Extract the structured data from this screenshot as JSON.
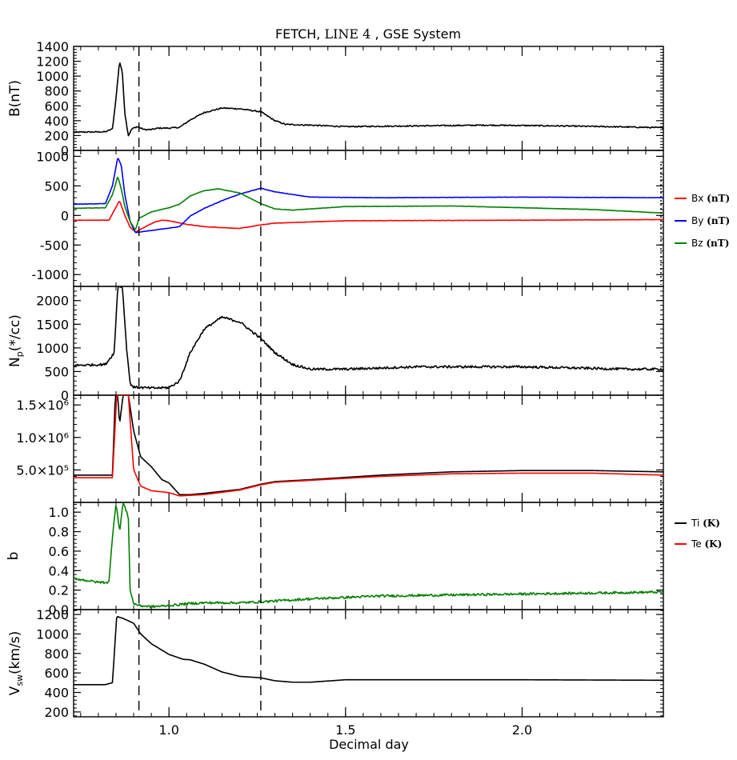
{
  "title": {
    "pre": "FETCH,",
    "mid": "LINE 4",
    "post": ", GSE System"
  },
  "chart_data": {
    "type": "line",
    "xlabel": "Decimal day",
    "xlim": [
      0.73,
      2.4
    ],
    "x_ticks": [
      1.0,
      1.5,
      2.0
    ],
    "x_tick_labels": [
      "1.0",
      "1.5",
      "2.0"
    ],
    "event_lines_x": [
      0.915,
      1.26
    ],
    "panels": [
      {
        "name": "B",
        "ylabel": "B(nT)",
        "ylim": [
          0,
          1400
        ],
        "y_ticks": [
          0,
          200,
          400,
          600,
          800,
          1000,
          1200,
          1400
        ],
        "y_tick_labels": [
          "0",
          "200",
          "400",
          "600",
          "800",
          "1000",
          "1200",
          "1400"
        ],
        "series": [
          {
            "color": "#000000",
            "noise": 8,
            "points": [
              [
                0.73,
                245
              ],
              [
                0.82,
                250
              ],
              [
                0.84,
                290
              ],
              [
                0.85,
                700
              ],
              [
                0.86,
                1200
              ],
              [
                0.868,
                1050
              ],
              [
                0.875,
                500
              ],
              [
                0.885,
                200
              ],
              [
                0.895,
                290
              ],
              [
                0.91,
                320
              ],
              [
                0.93,
                280
              ],
              [
                0.95,
                280
              ],
              [
                0.97,
                300
              ],
              [
                1.0,
                300
              ],
              [
                1.03,
                310
              ],
              [
                1.06,
                410
              ],
              [
                1.1,
                510
              ],
              [
                1.15,
                570
              ],
              [
                1.2,
                560
              ],
              [
                1.26,
                520
              ],
              [
                1.3,
                400
              ],
              [
                1.33,
                350
              ],
              [
                1.4,
                340
              ],
              [
                1.5,
                320
              ],
              [
                1.7,
                330
              ],
              [
                1.9,
                340
              ],
              [
                2.1,
                330
              ],
              [
                2.3,
                315
              ],
              [
                2.4,
                305
              ]
            ]
          }
        ]
      },
      {
        "name": "Bxyz",
        "ylabel": "",
        "ylim": [
          -1200,
          1100
        ],
        "y_ticks": [
          -1000,
          -500,
          0,
          500,
          1000
        ],
        "y_tick_labels": [
          "-1000",
          "-500",
          "0",
          "500",
          "1000"
        ],
        "series": [
          {
            "name": "Bx",
            "color": "#ff0000",
            "noise": 3,
            "points": [
              [
                0.73,
                -80
              ],
              [
                0.83,
                -80
              ],
              [
                0.86,
                250
              ],
              [
                0.875,
                0
              ],
              [
                0.89,
                -200
              ],
              [
                0.905,
                -280
              ],
              [
                0.93,
                -200
              ],
              [
                0.96,
                -110
              ],
              [
                0.98,
                -80
              ],
              [
                1.0,
                -90
              ],
              [
                1.05,
                -150
              ],
              [
                1.1,
                -190
              ],
              [
                1.2,
                -220
              ],
              [
                1.26,
                -160
              ],
              [
                1.3,
                -130
              ],
              [
                1.5,
                -90
              ],
              [
                2.0,
                -80
              ],
              [
                2.4,
                -70
              ]
            ]
          },
          {
            "name": "By",
            "color": "#0000ff",
            "noise": 3,
            "points": [
              [
                0.73,
                190
              ],
              [
                0.82,
                200
              ],
              [
                0.84,
                500
              ],
              [
                0.855,
                980
              ],
              [
                0.865,
                850
              ],
              [
                0.875,
                350
              ],
              [
                0.89,
                -100
              ],
              [
                0.905,
                -290
              ],
              [
                0.93,
                -270
              ],
              [
                0.98,
                -230
              ],
              [
                1.03,
                -190
              ],
              [
                1.06,
                -10
              ],
              [
                1.1,
                120
              ],
              [
                1.15,
                250
              ],
              [
                1.2,
                360
              ],
              [
                1.26,
                460
              ],
              [
                1.3,
                400
              ],
              [
                1.4,
                310
              ],
              [
                1.6,
                300
              ],
              [
                2.0,
                310
              ],
              [
                2.4,
                300
              ]
            ]
          },
          {
            "name": "Bz",
            "color": "#008000",
            "noise": 3,
            "points": [
              [
                0.73,
                120
              ],
              [
                0.82,
                130
              ],
              [
                0.84,
                350
              ],
              [
                0.855,
                660
              ],
              [
                0.865,
                450
              ],
              [
                0.875,
                150
              ],
              [
                0.89,
                -100
              ],
              [
                0.905,
                -250
              ],
              [
                0.915,
                -50
              ],
              [
                0.95,
                60
              ],
              [
                1.0,
                130
              ],
              [
                1.03,
                190
              ],
              [
                1.06,
                330
              ],
              [
                1.1,
                420
              ],
              [
                1.14,
                450
              ],
              [
                1.2,
                380
              ],
              [
                1.26,
                200
              ],
              [
                1.3,
                110
              ],
              [
                1.35,
                90
              ],
              [
                1.5,
                150
              ],
              [
                1.8,
                160
              ],
              [
                2.2,
                100
              ],
              [
                2.4,
                40
              ]
            ]
          }
        ]
      },
      {
        "name": "Np",
        "ylabel": "Np(*/cc)",
        "ylim": [
          0,
          2300
        ],
        "y_ticks": [
          0,
          500,
          1000,
          1500,
          2000
        ],
        "y_tick_labels": [
          "0",
          "500",
          "1000",
          "1500",
          "2000"
        ],
        "series": [
          {
            "color": "#000000",
            "noise": 25,
            "points": [
              [
                0.73,
                630
              ],
              [
                0.82,
                650
              ],
              [
                0.845,
                900
              ],
              [
                0.855,
                2300
              ],
              [
                0.868,
                2300
              ],
              [
                0.88,
                1000
              ],
              [
                0.89,
                250
              ],
              [
                0.9,
                170
              ],
              [
                0.95,
                150
              ],
              [
                1.0,
                160
              ],
              [
                1.03,
                300
              ],
              [
                1.06,
                900
              ],
              [
                1.1,
                1400
              ],
              [
                1.15,
                1650
              ],
              [
                1.2,
                1550
              ],
              [
                1.26,
                1200
              ],
              [
                1.3,
                900
              ],
              [
                1.35,
                650
              ],
              [
                1.4,
                550
              ],
              [
                1.5,
                550
              ],
              [
                1.7,
                600
              ],
              [
                2.0,
                600
              ],
              [
                2.3,
                550
              ],
              [
                2.4,
                550
              ]
            ]
          }
        ]
      },
      {
        "name": "T",
        "ylabel": "",
        "ylim": [
          0,
          1650000
        ],
        "y_ticks": [
          500000,
          1000000,
          1500000
        ],
        "y_tick_labels": [
          "5.0×10⁵",
          "1.0×10⁶",
          "1.5×10⁶"
        ],
        "series": [
          {
            "name": "Ti",
            "color": "#000000",
            "noise": 0,
            "points": [
              [
                0.73,
                420000
              ],
              [
                0.84,
                420000
              ],
              [
                0.848,
                1650000
              ],
              [
                0.855,
                1650000
              ],
              [
                0.86,
                1200000
              ],
              [
                0.87,
                1650000
              ],
              [
                0.885,
                1650000
              ],
              [
                0.9,
                1100000
              ],
              [
                0.92,
                700000
              ],
              [
                0.95,
                550000
              ],
              [
                0.98,
                350000
              ],
              [
                1.0,
                300000
              ],
              [
                1.03,
                120000
              ],
              [
                1.06,
                120000
              ],
              [
                1.1,
                140000
              ],
              [
                1.2,
                200000
              ],
              [
                1.26,
                280000
              ],
              [
                1.3,
                320000
              ],
              [
                1.4,
                350000
              ],
              [
                1.6,
                420000
              ],
              [
                1.8,
                470000
              ],
              [
                2.0,
                490000
              ],
              [
                2.2,
                490000
              ],
              [
                2.4,
                470000
              ]
            ]
          },
          {
            "name": "Te",
            "color": "#ff0000",
            "noise": 0,
            "points": [
              [
                0.73,
                380000
              ],
              [
                0.84,
                380000
              ],
              [
                0.852,
                1650000
              ],
              [
                0.87,
                1650000
              ],
              [
                0.885,
                1650000
              ],
              [
                0.9,
                500000
              ],
              [
                0.92,
                250000
              ],
              [
                0.95,
                180000
              ],
              [
                1.0,
                150000
              ],
              [
                1.03,
                100000
              ],
              [
                1.1,
                120000
              ],
              [
                1.2,
                190000
              ],
              [
                1.26,
                270000
              ],
              [
                1.3,
                310000
              ],
              [
                1.4,
                340000
              ],
              [
                1.6,
                400000
              ],
              [
                1.8,
                440000
              ],
              [
                2.0,
                450000
              ],
              [
                2.2,
                450000
              ],
              [
                2.4,
                420000
              ]
            ]
          }
        ]
      },
      {
        "name": "beta",
        "ylabel": "b",
        "ylim": [
          0,
          1.1
        ],
        "y_ticks": [
          0,
          0.2,
          0.4,
          0.6,
          0.8,
          1.0
        ],
        "y_tick_labels": [
          "0.0",
          "0.2",
          "0.4",
          "0.6",
          "0.8",
          "1.0"
        ],
        "series": [
          {
            "color": "#008000",
            "noise": 0.012,
            "points": [
              [
                0.73,
                0.32
              ],
              [
                0.8,
                0.28
              ],
              [
                0.83,
                0.28
              ],
              [
                0.84,
                0.75
              ],
              [
                0.85,
                1.1
              ],
              [
                0.86,
                0.8
              ],
              [
                0.87,
                1.1
              ],
              [
                0.885,
                0.95
              ],
              [
                0.89,
                0.2
              ],
              [
                0.9,
                0.06
              ],
              [
                0.92,
                0.04
              ],
              [
                0.95,
                0.03
              ],
              [
                1.0,
                0.04
              ],
              [
                1.05,
                0.06
              ],
              [
                1.1,
                0.07
              ],
              [
                1.2,
                0.07
              ],
              [
                1.26,
                0.08
              ],
              [
                1.4,
                0.11
              ],
              [
                1.6,
                0.14
              ],
              [
                2.0,
                0.16
              ],
              [
                2.4,
                0.18
              ]
            ]
          }
        ]
      },
      {
        "name": "Vsw",
        "ylabel": "Vsw(km/s)",
        "ylim": [
          150,
          1250
        ],
        "y_ticks": [
          200,
          400,
          600,
          800,
          1000,
          1200
        ],
        "y_tick_labels": [
          "200",
          "400",
          "600",
          "800",
          "1000",
          "1200"
        ],
        "series": [
          {
            "color": "#000000",
            "noise": 0,
            "points": [
              [
                0.73,
                480
              ],
              [
                0.82,
                480
              ],
              [
                0.84,
                500
              ],
              [
                0.852,
                1180
              ],
              [
                0.87,
                1160
              ],
              [
                0.9,
                1110
              ],
              [
                0.92,
                1000
              ],
              [
                0.95,
                900
              ],
              [
                1.0,
                790
              ],
              [
                1.04,
                740
              ],
              [
                1.06,
                735
              ],
              [
                1.1,
                690
              ],
              [
                1.15,
                610
              ],
              [
                1.2,
                565
              ],
              [
                1.26,
                550
              ],
              [
                1.3,
                520
              ],
              [
                1.35,
                505
              ],
              [
                1.4,
                505
              ],
              [
                1.5,
                530
              ],
              [
                2.0,
                530
              ],
              [
                2.4,
                525
              ]
            ]
          }
        ]
      }
    ]
  },
  "legend_b": [
    {
      "name": "Bx",
      "unit": "(nT)",
      "color": "#ff0000"
    },
    {
      "name": "By",
      "unit": "(nT)",
      "color": "#0000ff"
    },
    {
      "name": "Bz",
      "unit": "(nT)",
      "color": "#008000"
    }
  ],
  "legend_t": [
    {
      "name": "Ti",
      "unit": "(K)",
      "color": "#000000"
    },
    {
      "name": "Te",
      "unit": "(K)",
      "color": "#ff0000"
    }
  ],
  "axis_labels": {
    "np_main": "N",
    "np_sub": "p",
    "np_rest": "(*/cc)",
    "v_main": "V",
    "v_sub": "sw",
    "v_rest": "(km/s)"
  }
}
